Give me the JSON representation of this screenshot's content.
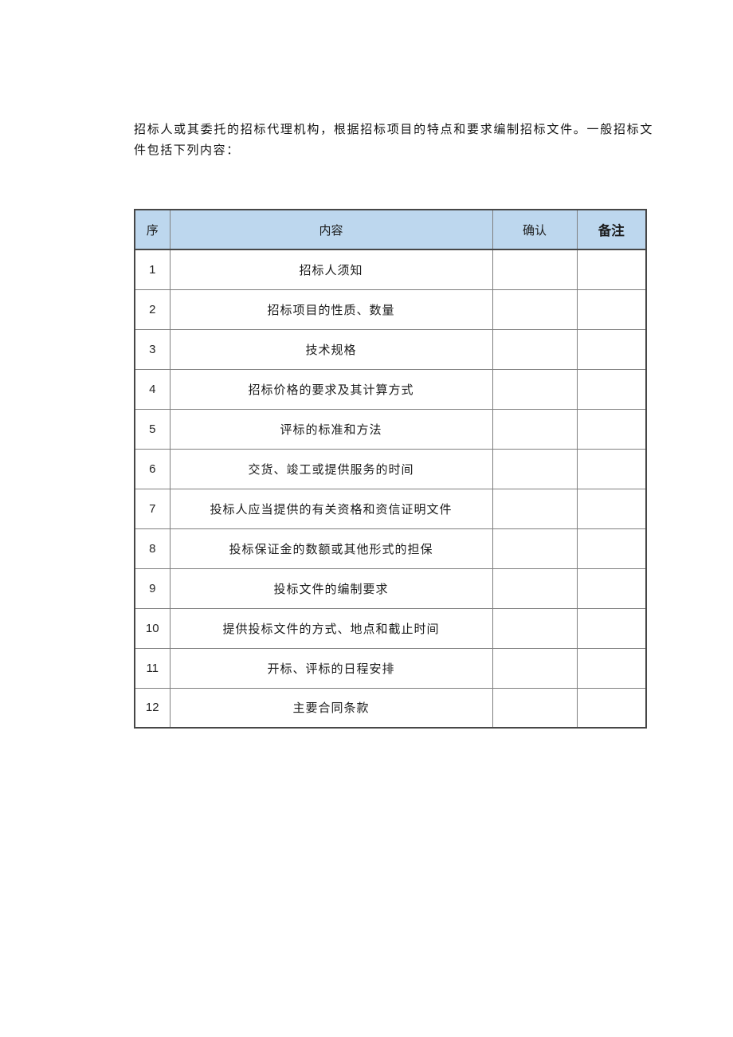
{
  "intro_paragraph": "招标人或其委托的招标代理机构，根据招标项目的特点和要求编制招标文件。一般招标文件包括下列内容：",
  "table": {
    "header_bg": "#BDD7EE",
    "columns": [
      {
        "key": "num",
        "label": "序"
      },
      {
        "key": "content",
        "label": "内容"
      },
      {
        "key": "confirm",
        "label": "确认"
      },
      {
        "key": "remark",
        "label": "备注"
      }
    ],
    "rows": [
      {
        "num": "1",
        "content": "招标人须知",
        "confirm": "",
        "remark": ""
      },
      {
        "num": "2",
        "content": "招标项目的性质、数量",
        "confirm": "",
        "remark": ""
      },
      {
        "num": "3",
        "content": "技术规格",
        "confirm": "",
        "remark": ""
      },
      {
        "num": "4",
        "content": "招标价格的要求及其计算方式",
        "confirm": "",
        "remark": ""
      },
      {
        "num": "5",
        "content": "评标的标准和方法",
        "confirm": "",
        "remark": ""
      },
      {
        "num": "6",
        "content": "交货、竣工或提供服务的时间",
        "confirm": "",
        "remark": ""
      },
      {
        "num": "7",
        "content": "投标人应当提供的有关资格和资信证明文件",
        "confirm": "",
        "remark": ""
      },
      {
        "num": "8",
        "content": "投标保证金的数额或其他形式的担保",
        "confirm": "",
        "remark": ""
      },
      {
        "num": "9",
        "content": "投标文件的编制要求",
        "confirm": "",
        "remark": ""
      },
      {
        "num": "10",
        "content": "提供投标文件的方式、地点和截止时间",
        "confirm": "",
        "remark": ""
      },
      {
        "num": "11",
        "content": "开标、评标的日程安排",
        "confirm": "",
        "remark": ""
      },
      {
        "num": "12",
        "content": "主要合同条款",
        "confirm": "",
        "remark": ""
      }
    ]
  }
}
